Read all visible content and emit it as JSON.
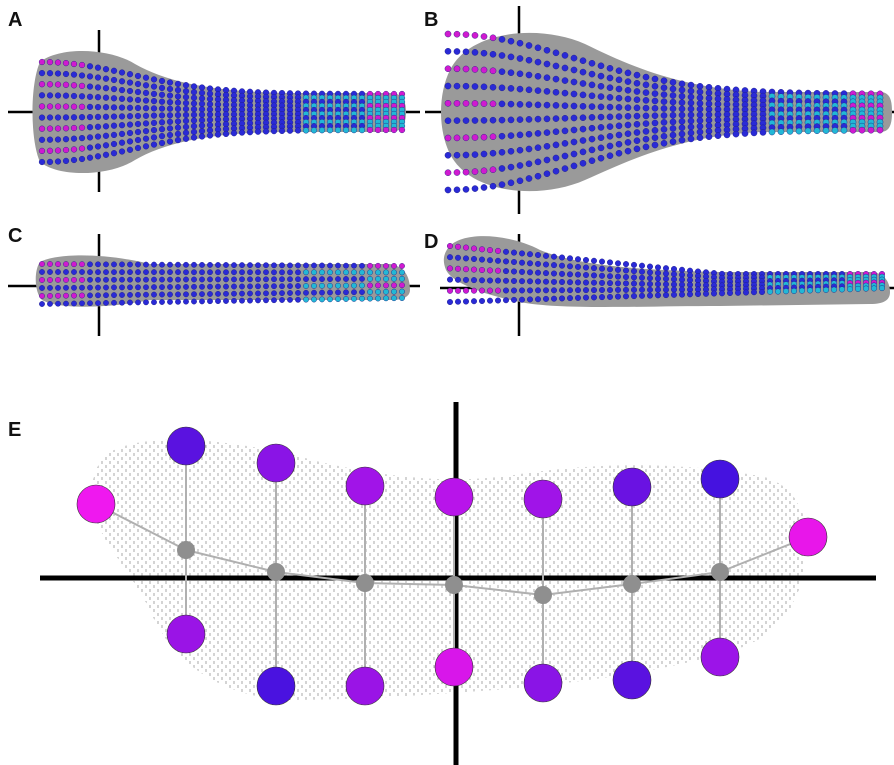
{
  "panels": {
    "a": {
      "label": "A"
    },
    "b": {
      "label": "B"
    },
    "c": {
      "label": "C"
    },
    "d": {
      "label": "D"
    },
    "e": {
      "label": "E"
    }
  },
  "colors": {
    "background": "#ffffff",
    "body_fill": "#9a9a9a",
    "axis": "#000000",
    "dot_blue": "#2a2ad6",
    "dot_cyan": "#22b8d6",
    "dot_magenta": "#d01ad0",
    "node_gray": "#8f8f8f",
    "link_gray": "#b0b0b0",
    "hatch_gray": "#a8a8a8"
  },
  "panel_e_nodes": [
    {
      "top_color": "#ef18ef",
      "bottom_color": null
    },
    {
      "top_color": "#5a12e0",
      "bottom_color": "#9a14e6"
    },
    {
      "top_color": "#8a14e6",
      "bottom_color": "#4a12e0"
    },
    {
      "top_color": "#a114e8",
      "bottom_color": "#9a14e6"
    },
    {
      "top_color": "#b814ea",
      "bottom_color": "#d816ea"
    },
    {
      "top_color": "#a014e8",
      "bottom_color": "#8a14e6"
    },
    {
      "top_color": "#6a12e2",
      "bottom_color": "#5a12e0"
    },
    {
      "top_color": "#4512e0",
      "bottom_color": "#9c14e8"
    },
    {
      "top_color": "#e816ea",
      "bottom_color": null
    }
  ]
}
